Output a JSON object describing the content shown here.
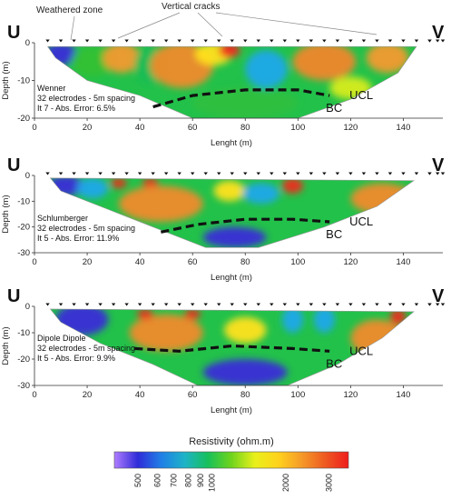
{
  "annotations": {
    "weathered_zone": "Weathered zone",
    "vertical_cracks": "Vertical cracks"
  },
  "chart_data": [
    {
      "type": "heatmap",
      "panel": "Wenner",
      "end_labels": [
        "U",
        "V"
      ],
      "info_lines": [
        "Wenner",
        "32 electrodes - 5m spacing",
        "It 7 - Abs. Error: 6.5%"
      ],
      "xlabel": "Lenght (m)",
      "ylabel": "Depth (m)",
      "xlim": [
        0,
        155
      ],
      "ylim": [
        -20,
        0
      ],
      "x_ticks": [
        0,
        20,
        40,
        60,
        80,
        100,
        120,
        140
      ],
      "y_ticks": [
        0,
        -10,
        -20
      ],
      "electrodes": {
        "count": 32,
        "start": 5,
        "spacing": 5
      },
      "section_outline": [
        [
          5,
          -1
        ],
        [
          8,
          -4
        ],
        [
          20,
          -10
        ],
        [
          40,
          -14
        ],
        [
          60,
          -20
        ],
        [
          100,
          -20
        ],
        [
          120,
          -15
        ],
        [
          138,
          -8
        ],
        [
          145,
          -1
        ]
      ],
      "boundary_line": {
        "label": "BC",
        "points": [
          [
            45,
            -17
          ],
          [
            60,
            -14
          ],
          [
            80,
            -12.5
          ],
          [
            100,
            -12.5
          ],
          [
            112,
            -14
          ]
        ]
      },
      "layer_label": "UCL",
      "blobs": [
        {
          "x": 10,
          "y": -3,
          "rx": 6,
          "ry": 3,
          "color": "#3a2bd8"
        },
        {
          "x": 22,
          "y": -5,
          "rx": 8,
          "ry": 4,
          "color": "#34c032"
        },
        {
          "x": 33,
          "y": -4,
          "rx": 7,
          "ry": 4,
          "color": "#f29a2e"
        },
        {
          "x": 44,
          "y": -6,
          "rx": 6,
          "ry": 5,
          "color": "#17bc55"
        },
        {
          "x": 56,
          "y": -6,
          "rx": 12,
          "ry": 6,
          "color": "#f08a2a"
        },
        {
          "x": 68,
          "y": -3,
          "rx": 7,
          "ry": 3,
          "color": "#ffe21c"
        },
        {
          "x": 74,
          "y": -2,
          "rx": 4,
          "ry": 2,
          "color": "#ee2a1f"
        },
        {
          "x": 88,
          "y": -7,
          "rx": 8,
          "ry": 5,
          "color": "#1fa8ea"
        },
        {
          "x": 110,
          "y": -5,
          "rx": 12,
          "ry": 5,
          "color": "#f0872c"
        },
        {
          "x": 134,
          "y": -4,
          "rx": 8,
          "ry": 4,
          "color": "#f29a2e"
        },
        {
          "x": 120,
          "y": -12,
          "rx": 8,
          "ry": 3,
          "color": "#d7ec1c"
        },
        {
          "x": 80,
          "y": -16,
          "rx": 20,
          "ry": 4,
          "color": "#2fbf3f"
        }
      ]
    },
    {
      "type": "heatmap",
      "panel": "Schlumberger",
      "end_labels": [
        "U",
        "V"
      ],
      "info_lines": [
        "Schlumberger",
        "32 electrodes - 5m spacing",
        "It 5 - Abs. Error: 11.9%"
      ],
      "xlabel": "Lenght (m)",
      "ylabel": "Depth (m)",
      "xlim": [
        0,
        155
      ],
      "ylim": [
        -30,
        0
      ],
      "x_ticks": [
        0,
        20,
        40,
        60,
        80,
        100,
        120,
        140
      ],
      "y_ticks": [
        0,
        -10,
        -20,
        -30
      ],
      "electrodes": {
        "count": 32,
        "start": 5,
        "spacing": 5
      },
      "section_outline": [
        [
          6,
          -1
        ],
        [
          10,
          -6
        ],
        [
          25,
          -12
        ],
        [
          45,
          -20
        ],
        [
          65,
          -28
        ],
        [
          85,
          -28
        ],
        [
          110,
          -20
        ],
        [
          130,
          -12
        ],
        [
          144,
          -2
        ]
      ],
      "boundary_line": {
        "label": "BC",
        "points": [
          [
            48,
            -22
          ],
          [
            62,
            -19
          ],
          [
            80,
            -17
          ],
          [
            98,
            -17
          ],
          [
            112,
            -18
          ]
        ]
      },
      "layer_label": "UCL",
      "blobs": [
        {
          "x": 12,
          "y": -4,
          "rx": 7,
          "ry": 4,
          "color": "#3a2bd8"
        },
        {
          "x": 22,
          "y": -5,
          "rx": 6,
          "ry": 4,
          "color": "#1fa8ea"
        },
        {
          "x": 32,
          "y": -3,
          "rx": 3,
          "ry": 2,
          "color": "#ee2a1f"
        },
        {
          "x": 44,
          "y": -3,
          "rx": 3,
          "ry": 2,
          "color": "#ee2a1f"
        },
        {
          "x": 48,
          "y": -11,
          "rx": 16,
          "ry": 7,
          "color": "#f08a2a"
        },
        {
          "x": 74,
          "y": -6,
          "rx": 6,
          "ry": 4,
          "color": "#ffe21c"
        },
        {
          "x": 86,
          "y": -7,
          "rx": 7,
          "ry": 4,
          "color": "#1fa8ea"
        },
        {
          "x": 98,
          "y": -4,
          "rx": 4,
          "ry": 3,
          "color": "#ee2a1f"
        },
        {
          "x": 132,
          "y": -9,
          "rx": 12,
          "ry": 6,
          "color": "#f08a2a"
        },
        {
          "x": 76,
          "y": -24,
          "rx": 12,
          "ry": 4,
          "color": "#3a2bd8"
        }
      ]
    },
    {
      "type": "heatmap",
      "panel": "Dipole Dipole",
      "end_labels": [
        "U",
        "V"
      ],
      "info_lines": [
        "Dipole Dipole",
        "32 electrodes - 5m spacing",
        "It 5 - Abs. Error: 9.9%"
      ],
      "xlabel": "Lenght (m)",
      "ylabel": "Depth (m)",
      "xlim": [
        0,
        155
      ],
      "ylim": [
        -30,
        0
      ],
      "x_ticks": [
        0,
        20,
        40,
        60,
        80,
        100,
        120,
        140
      ],
      "y_ticks": [
        0,
        -10,
        -20,
        -30
      ],
      "electrodes": {
        "count": 32,
        "start": 5,
        "spacing": 5
      },
      "section_outline": [
        [
          6,
          -1
        ],
        [
          10,
          -6
        ],
        [
          25,
          -14
        ],
        [
          45,
          -22
        ],
        [
          62,
          -30
        ],
        [
          96,
          -30
        ],
        [
          115,
          -22
        ],
        [
          132,
          -12
        ],
        [
          144,
          -2
        ]
      ],
      "boundary_line": {
        "label": "BC",
        "points": [
          [
            38,
            -16
          ],
          [
            55,
            -17
          ],
          [
            75,
            -15
          ],
          [
            98,
            -16
          ],
          [
            112,
            -17
          ]
        ]
      },
      "layer_label": "UCL",
      "blobs": [
        {
          "x": 18,
          "y": -5,
          "rx": 10,
          "ry": 6,
          "color": "#3a2bd8"
        },
        {
          "x": 50,
          "y": -10,
          "rx": 14,
          "ry": 7,
          "color": "#f08a2a"
        },
        {
          "x": 42,
          "y": -3,
          "rx": 3,
          "ry": 2,
          "color": "#ee2a1f"
        },
        {
          "x": 60,
          "y": -3,
          "rx": 3,
          "ry": 2,
          "color": "#ee2a1f"
        },
        {
          "x": 80,
          "y": -9,
          "rx": 8,
          "ry": 5,
          "color": "#ffe21c"
        },
        {
          "x": 98,
          "y": -5,
          "rx": 4,
          "ry": 5,
          "color": "#1fa8ea"
        },
        {
          "x": 110,
          "y": -5,
          "rx": 4,
          "ry": 5,
          "color": "#1fa8ea"
        },
        {
          "x": 130,
          "y": -12,
          "rx": 10,
          "ry": 7,
          "color": "#f08a2a"
        },
        {
          "x": 138,
          "y": -4,
          "rx": 3,
          "ry": 3,
          "color": "#ee2a1f"
        },
        {
          "x": 80,
          "y": -25,
          "rx": 16,
          "ry": 5,
          "color": "#3a2bd8"
        }
      ]
    }
  ],
  "colorbar": {
    "title": "Resistivity (ohm.m)",
    "tick_labels": [
      "500",
      "600",
      "700",
      "800",
      "900",
      "1000",
      "2000",
      "3000"
    ],
    "tick_values": [
      500,
      600,
      700,
      800,
      900,
      1000,
      2000,
      3000
    ],
    "range": [
      400,
      3600
    ],
    "stops": [
      "#b07cff",
      "#2e2bd8",
      "#1f7fe6",
      "#1fb3c8",
      "#17c05a",
      "#6fd41c",
      "#e9f01c",
      "#ffd21c",
      "#f59a28",
      "#ee5a22",
      "#ee1c1c"
    ],
    "colors": {
      "outline": "#555555"
    }
  }
}
